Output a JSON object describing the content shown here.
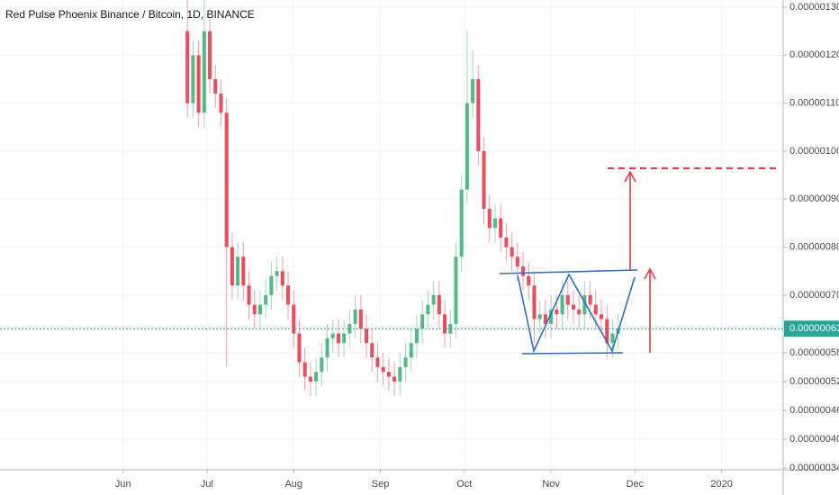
{
  "chart_data": {
    "type": "candlestick",
    "title": "Red Pulse Phoenix Binance / Bitcoin, 1D, BINANCE",
    "up_color": "#53b987",
    "down_color": "#eb4d5c",
    "grid": true,
    "xlim": [
      -44,
      236
    ],
    "ylim": [
      3.36e-07,
      1.315e-06
    ],
    "xticks": [
      {
        "value": 0,
        "label": "Jun"
      },
      {
        "value": 30,
        "label": "Jul"
      },
      {
        "value": 61,
        "label": "Aug"
      },
      {
        "value": 92,
        "label": "Sep"
      },
      {
        "value": 122,
        "label": "Oct"
      },
      {
        "value": 153,
        "label": "Nov"
      },
      {
        "value": 183,
        "label": "Dec"
      },
      {
        "value": 214,
        "label": "2020"
      }
    ],
    "yticks": [
      {
        "value": 1.3e-06,
        "label": "0.00000130"
      },
      {
        "value": 1.2e-06,
        "label": "0.00000120"
      },
      {
        "value": 1.1e-06,
        "label": "0.00000110"
      },
      {
        "value": 1e-06,
        "label": "0.00000100"
      },
      {
        "value": 9e-07,
        "label": "0.00000090"
      },
      {
        "value": 8e-07,
        "label": "0.00000080"
      },
      {
        "value": 7e-07,
        "label": "0.00000070"
      },
      {
        "value": 5.8e-07,
        "label": "0.00000058"
      },
      {
        "value": 5.2e-07,
        "label": "0.00000052"
      },
      {
        "value": 4.6e-07,
        "label": "0.00000046"
      },
      {
        "value": 4e-07,
        "label": "0.00000040"
      },
      {
        "value": 3.4e-07,
        "label": "0.00000034"
      }
    ],
    "last_price": {
      "value": 6.3e-07,
      "label": "0.00000063",
      "color": "#26a69a"
    },
    "x": [
      23,
      25,
      27,
      29,
      31,
      33,
      35,
      37,
      39,
      41,
      43,
      45,
      47,
      49,
      51,
      53,
      55,
      57,
      59,
      61,
      63,
      65,
      67,
      69,
      71,
      73,
      75,
      77,
      79,
      81,
      83,
      85,
      87,
      89,
      91,
      93,
      95,
      97,
      99,
      101,
      103,
      105,
      107,
      109,
      111,
      113,
      115,
      117,
      119,
      121,
      123,
      125,
      127,
      129,
      131,
      133,
      135,
      137,
      139,
      141,
      143,
      145,
      147,
      149,
      151,
      153,
      155,
      157,
      159,
      161,
      163,
      165,
      167,
      169,
      171,
      173,
      175,
      177
    ],
    "open": [
      1.25e-06,
      1.1e-06,
      1.2e-06,
      1.08e-06,
      1.25e-06,
      1.15e-06,
      1.12e-06,
      1.08e-06,
      8e-07,
      7.2e-07,
      7.8e-07,
      7.2e-07,
      6.8e-07,
      6.6e-07,
      6.8e-07,
      7e-07,
      7.4e-07,
      7.5e-07,
      7.2e-07,
      6.8e-07,
      6.2e-07,
      5.6e-07,
      5.3e-07,
      5.2e-07,
      5.4e-07,
      5.7e-07,
      6.1e-07,
      6.2e-07,
      6e-07,
      6.2e-07,
      6.4e-07,
      6.7e-07,
      6.3e-07,
      6e-07,
      5.7e-07,
      5.5e-07,
      5.4e-07,
      5.3e-07,
      5.2e-07,
      5.5e-07,
      5.7e-07,
      6e-07,
      6.3e-07,
      6.6e-07,
      6.8e-07,
      7e-07,
      6.6e-07,
      6.2e-07,
      6.4e-07,
      7.8e-07,
      9.2e-07,
      1.1e-06,
      1.15e-06,
      1e-06,
      8.8e-07,
      8.4e-07,
      8.6e-07,
      8.2e-07,
      8e-07,
      7.8e-07,
      7.6e-07,
      7.4e-07,
      7.2e-07,
      6.5e-07,
      6.6e-07,
      6.4e-07,
      6.7e-07,
      6.6e-07,
      7e-07,
      6.8e-07,
      6.7e-07,
      6.6e-07,
      7e-07,
      6.8e-07,
      6.6e-07,
      6.5e-07,
      6e-07,
      6.2e-07
    ],
    "high": [
      1.33e-06,
      1.23e-06,
      1.23e-06,
      1.35e-06,
      1.28e-06,
      1.18e-06,
      1.15e-06,
      1.11e-06,
      8.3e-07,
      8.1e-07,
      8.1e-07,
      7.5e-07,
      7.1e-07,
      7.1e-07,
      7.3e-07,
      7.7e-07,
      7.8e-07,
      7.8e-07,
      7.5e-07,
      7.1e-07,
      6.5e-07,
      5.9e-07,
      5.6e-07,
      5.7e-07,
      6e-07,
      6.4e-07,
      6.5e-07,
      6.5e-07,
      6.5e-07,
      6.7e-07,
      7e-07,
      7e-07,
      6.6e-07,
      6.3e-07,
      6e-07,
      5.8e-07,
      5.7e-07,
      5.6e-07,
      5.8e-07,
      6e-07,
      6.3e-07,
      6.6e-07,
      6.9e-07,
      7.1e-07,
      7.3e-07,
      7.3e-07,
      6.9e-07,
      6.7e-07,
      8.1e-07,
      9.5e-07,
      1.25e-06,
      1.21e-06,
      1.18e-06,
      1.03e-06,
      9.1e-07,
      8.9e-07,
      8.9e-07,
      8.5e-07,
      8.3e-07,
      8.1e-07,
      7.9e-07,
      7.7e-07,
      7.5e-07,
      6.9e-07,
      6.9e-07,
      7e-07,
      7e-07,
      7.3e-07,
      7.3e-07,
      7.1e-07,
      7e-07,
      7.3e-07,
      7.3e-07,
      7.1e-07,
      6.9e-07,
      6.8e-07,
      6.5e-07,
      6.6e-07
    ],
    "low": [
      1.07e-06,
      1.07e-06,
      1.05e-06,
      1.05e-06,
      1.12e-06,
      1.09e-06,
      1.05e-06,
      5.5e-07,
      6.9e-07,
      6.9e-07,
      6.9e-07,
      6.5e-07,
      6.3e-07,
      6.3e-07,
      6.5e-07,
      6.7e-07,
      7.1e-07,
      6.9e-07,
      6.5e-07,
      5.9e-07,
      5.3e-07,
      5e-07,
      4.9e-07,
      4.9e-07,
      5.1e-07,
      5.4e-07,
      5.8e-07,
      5.7e-07,
      5.7e-07,
      5.9e-07,
      6.1e-07,
      6e-07,
      5.7e-07,
      5.4e-07,
      5.2e-07,
      5.1e-07,
      5e-07,
      4.9e-07,
      4.9e-07,
      5.2e-07,
      5.4e-07,
      5.7e-07,
      6e-07,
      6.3e-07,
      6.5e-07,
      6.3e-07,
      5.9e-07,
      5.9e-07,
      6.1e-07,
      7.5e-07,
      8.9e-07,
      1.07e-06,
      9.7e-07,
      8.5e-07,
      8.1e-07,
      8.1e-07,
      7.9e-07,
      7.7e-07,
      7.5e-07,
      7.3e-07,
      7.1e-07,
      6.9e-07,
      6e-07,
      6.2e-07,
      6.1e-07,
      6.1e-07,
      6.3e-07,
      6.3e-07,
      6.5e-07,
      6.4e-07,
      6.3e-07,
      6.3e-07,
      6.5e-07,
      6.3e-07,
      6.2e-07,
      5.7e-07,
      5.7e-07,
      5.9e-07
    ],
    "close": [
      1.1e-06,
      1.2e-06,
      1.08e-06,
      1.25e-06,
      1.15e-06,
      1.12e-06,
      1.08e-06,
      8e-07,
      7.2e-07,
      7.8e-07,
      7.2e-07,
      6.8e-07,
      6.6e-07,
      6.8e-07,
      7e-07,
      7.4e-07,
      7.5e-07,
      7.2e-07,
      6.8e-07,
      6.2e-07,
      5.6e-07,
      5.3e-07,
      5.2e-07,
      5.4e-07,
      5.7e-07,
      6.1e-07,
      6.2e-07,
      6e-07,
      6.2e-07,
      6.4e-07,
      6.7e-07,
      6.3e-07,
      6e-07,
      5.7e-07,
      5.5e-07,
      5.4e-07,
      5.3e-07,
      5.2e-07,
      5.5e-07,
      5.7e-07,
      6e-07,
      6.3e-07,
      6.6e-07,
      6.8e-07,
      7e-07,
      6.6e-07,
      6.2e-07,
      6.4e-07,
      7.8e-07,
      9.2e-07,
      1.1e-06,
      1.15e-06,
      1e-06,
      8.8e-07,
      8.4e-07,
      8.6e-07,
      8.2e-07,
      8e-07,
      7.8e-07,
      7.6e-07,
      7.4e-07,
      7.2e-07,
      6.5e-07,
      6.6e-07,
      6.4e-07,
      6.7e-07,
      6.6e-07,
      7e-07,
      6.8e-07,
      6.7e-07,
      6.6e-07,
      7e-07,
      6.8e-07,
      6.6e-07,
      6.5e-07,
      6e-07,
      6.2e-07,
      6.3e-07
    ]
  }
}
